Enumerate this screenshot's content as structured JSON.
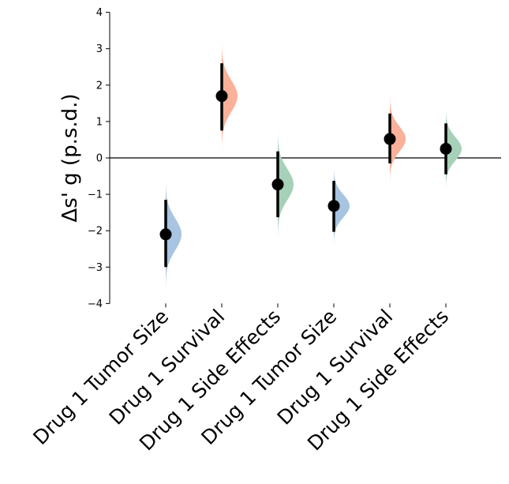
{
  "chart_data": {
    "type": "scatter",
    "subtype": "slopegraph-style delta effect-size plot with half-violin distributions",
    "ylabel": "Δs' g (p.s.d.)",
    "ylim": [
      -4,
      4
    ],
    "yticks": [
      -4,
      -3,
      -2,
      -1,
      0,
      1,
      2,
      3,
      4
    ],
    "ytick_labels": [
      "−4",
      "−3",
      "−2",
      "−1",
      "0",
      "1",
      "2",
      "3",
      "4"
    ],
    "reference_line": 0,
    "categories": [
      "Drug 1 Tumor Size",
      "Drug 1 Survival",
      "Drug 1 Side Effects",
      "Drug 1 Tumor Size",
      "Drug 1 Survival",
      "Drug 1 Side Effects"
    ],
    "series": [
      {
        "points": [
          {
            "estimate": -2.1,
            "ci_low": -3.0,
            "ci_high": -1.15,
            "dist_min": -3.7,
            "dist_max": -0.65,
            "color": "#a7c4e0"
          },
          {
            "estimate": 1.7,
            "ci_low": 0.75,
            "ci_high": 2.6,
            "dist_min": 0.15,
            "dist_max": 3.2,
            "color": "#fbb09a"
          },
          {
            "estimate": -0.73,
            "ci_low": -1.63,
            "ci_high": 0.18,
            "dist_min": -2.2,
            "dist_max": 0.8,
            "color": "#a6d0b8"
          },
          {
            "estimate": -1.32,
            "ci_low": -2.03,
            "ci_high": -0.63,
            "dist_min": -2.4,
            "dist_max": -0.2,
            "color": "#a7c4e0"
          },
          {
            "estimate": 0.52,
            "ci_low": -0.15,
            "ci_high": 1.22,
            "dist_min": -0.7,
            "dist_max": 1.75,
            "color": "#fbb09a"
          },
          {
            "estimate": 0.25,
            "ci_low": -0.45,
            "ci_high": 0.95,
            "dist_min": -0.9,
            "dist_max": 1.35,
            "color": "#a6d0b8"
          }
        ]
      }
    ],
    "grid": false
  }
}
